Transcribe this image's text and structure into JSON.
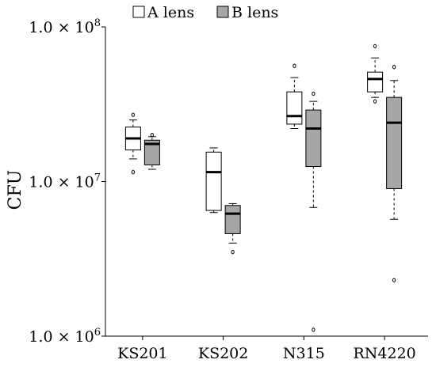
{
  "chart_data": {
    "type": "box",
    "title": "",
    "xlabel": "",
    "ylabel": "CFU",
    "yscale": "log",
    "ylim": [
      1000000,
      100000000
    ],
    "yticks": [
      {
        "value": 1000000,
        "label_mantissa": "1.0 × 10",
        "label_exp": "6"
      },
      {
        "value": 10000000,
        "label_mantissa": "1.0 × 10",
        "label_exp": "7"
      },
      {
        "value": 100000000,
        "label_mantissa": "1.0 × 10",
        "label_exp": "8"
      }
    ],
    "categories": [
      "KS201",
      "KS202",
      "N315",
      "RN4220"
    ],
    "legend": {
      "position": "top",
      "entries": [
        "A lens",
        "B lens"
      ]
    },
    "grid": false,
    "series": [
      {
        "name": "A lens",
        "color": "#ffffff",
        "boxes": [
          {
            "q1": 16000000,
            "median": 19000000,
            "q3": 22500000,
            "whisker_low": 14000000,
            "whisker_high": 25000000,
            "outliers": [
              11500000,
              27000000
            ]
          },
          {
            "q1": 6500000,
            "median": 11500000,
            "q3": 15500000,
            "whisker_low": 6300000,
            "whisker_high": 16500000,
            "outliers": []
          },
          {
            "q1": 23500000,
            "median": 26500000,
            "q3": 38000000,
            "whisker_low": 22000000,
            "whisker_high": 47000000,
            "outliers": [
              56000000
            ]
          },
          {
            "q1": 38000000,
            "median": 46000000,
            "q3": 51000000,
            "whisker_low": 35000000,
            "whisker_high": 63000000,
            "outliers": [
              33000000,
              75000000
            ]
          }
        ]
      },
      {
        "name": "B lens",
        "color": "#a6a6a6",
        "boxes": [
          {
            "q1": 12800000,
            "median": 17500000,
            "q3": 18500000,
            "whisker_low": 12000000,
            "whisker_high": 19500000,
            "outliers": [
              20000000
            ]
          },
          {
            "q1": 4600000,
            "median": 6200000,
            "q3": 7000000,
            "whisker_low": 4000000,
            "whisker_high": 7200000,
            "outliers": [
              3500000
            ]
          },
          {
            "q1": 12500000,
            "median": 22000000,
            "q3": 29000000,
            "whisker_low": 6800000,
            "whisker_high": 33000000,
            "outliers": [
              37000000,
              1100000
            ]
          },
          {
            "q1": 9000000,
            "median": 24000000,
            "q3": 35000000,
            "whisker_low": 5700000,
            "whisker_high": 45000000,
            "outliers": [
              55000000,
              2300000
            ]
          }
        ]
      }
    ]
  }
}
